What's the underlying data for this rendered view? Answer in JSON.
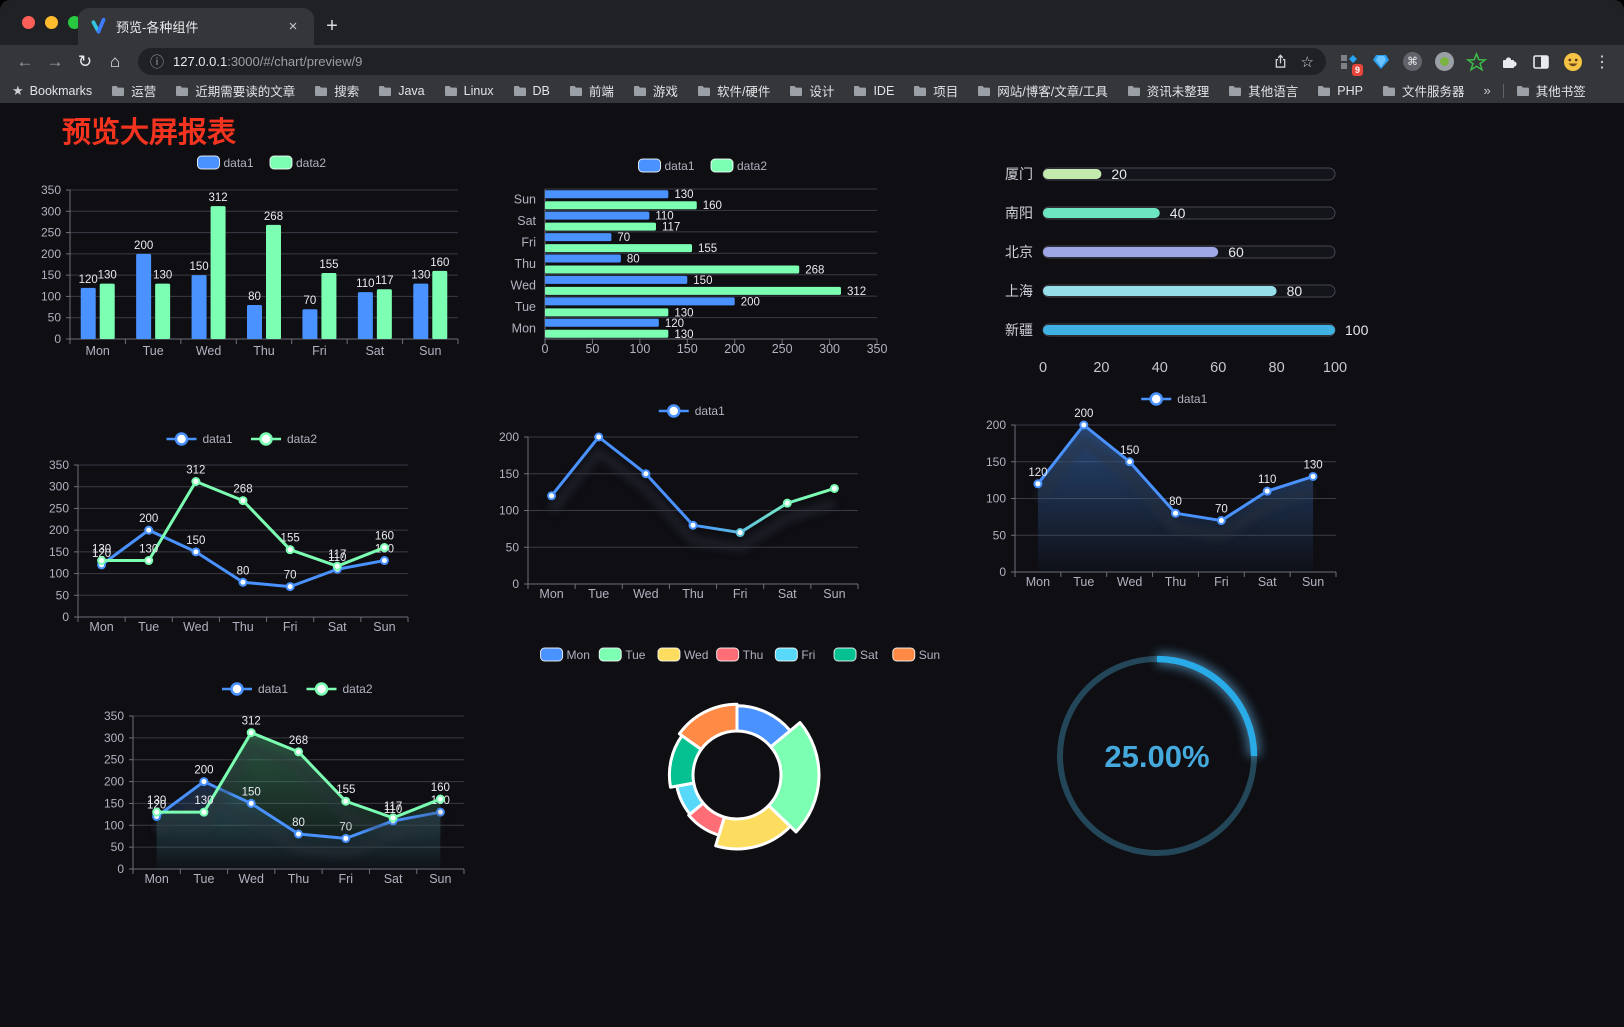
{
  "browser": {
    "tab_title": "预览-各种组件",
    "url_host": "127.0.0.1",
    "url_rest": ":3000/#/chart/preview/9",
    "extensions_badge": "9",
    "bookmarks_label": "Bookmarks",
    "bookmarks": [
      "运营",
      "近期需要读的文章",
      "搜索",
      "Java",
      "Linux",
      "DB",
      "前端",
      "游戏",
      "软件/硬件",
      "设计",
      "IDE",
      "项目",
      "网站/博客/文章/工具",
      "资讯未整理",
      "其他语言",
      "PHP",
      "文件服务器"
    ],
    "bookmarks_overflow": "»",
    "other_bookmarks": "其他书签",
    "icons": {
      "back": "←",
      "forward": "→",
      "reload": "↻",
      "home": "⌂",
      "info": "ⓘ",
      "star": "☆",
      "close": "×",
      "plus": "+",
      "menu": "⋮",
      "command": "⌘",
      "bookmarks_star": "★"
    }
  },
  "page": {
    "title": "预览大屏报表",
    "title_color": "#f4341f"
  },
  "theme": {
    "bg": "#0e0e13",
    "axis_label": "#b2b2c0",
    "grid": "#3a3b45",
    "axis_line": "#6e7079",
    "value_label": "#e9e9ee",
    "data1": "#4992ff",
    "data2": "#7cffb2"
  },
  "chart_data": [
    {
      "type": "bar",
      "legend": [
        "data1",
        "data2"
      ],
      "legend_position": "top",
      "categories": [
        "Mon",
        "Tue",
        "Wed",
        "Thu",
        "Fri",
        "Sat",
        "Sun"
      ],
      "series": [
        {
          "name": "data1",
          "color": "#4992ff",
          "values": [
            120,
            200,
            150,
            80,
            70,
            110,
            130
          ]
        },
        {
          "name": "data2",
          "color": "#7cffb2",
          "values": [
            130,
            130,
            312,
            268,
            155,
            117,
            160
          ]
        }
      ],
      "ylim": [
        0,
        350
      ],
      "ytick": 50,
      "grid": true
    },
    {
      "type": "bar",
      "orientation": "horizontal",
      "legend": [
        "data1",
        "data2"
      ],
      "legend_position": "top",
      "categories": [
        "Mon",
        "Tue",
        "Wed",
        "Thu",
        "Fri",
        "Sat",
        "Sun"
      ],
      "display_order_top_to_bottom": [
        "Sun",
        "Sat",
        "Fri",
        "Thu",
        "Wed",
        "Tue",
        "Mon"
      ],
      "series": [
        {
          "name": "data1",
          "color": "#4992ff",
          "values": [
            120,
            200,
            150,
            80,
            70,
            110,
            130
          ]
        },
        {
          "name": "data2",
          "color": "#7cffb2",
          "values": [
            130,
            130,
            312,
            268,
            155,
            117,
            160
          ]
        }
      ],
      "xlim": [
        0,
        350
      ],
      "xtick": 50,
      "grid": true
    },
    {
      "type": "bar",
      "subtype": "progress",
      "items": [
        {
          "label": "厦门",
          "value": 20,
          "color": "#c4ebad"
        },
        {
          "label": "南阳",
          "value": 40,
          "color": "#6be6c1"
        },
        {
          "label": "北京",
          "value": 60,
          "color": "#a0a7e6"
        },
        {
          "label": "上海",
          "value": 80,
          "color": "#96dee8"
        },
        {
          "label": "新疆",
          "value": 100,
          "color": "#3fb1e3"
        }
      ],
      "xlim": [
        0,
        100
      ],
      "xticks": [
        0,
        20,
        40,
        60,
        80,
        100
      ]
    },
    {
      "type": "line",
      "legend": [
        "data1",
        "data2"
      ],
      "legend_position": "top",
      "categories": [
        "Mon",
        "Tue",
        "Wed",
        "Thu",
        "Fri",
        "Sat",
        "Sun"
      ],
      "series": [
        {
          "name": "data1",
          "color": "#4992ff",
          "values": [
            120,
            200,
            150,
            80,
            70,
            110,
            130
          ]
        },
        {
          "name": "data2",
          "color": "#7cffb2",
          "values": [
            130,
            130,
            312,
            268,
            155,
            117,
            160
          ]
        }
      ],
      "ylim": [
        0,
        350
      ],
      "ytick": 50,
      "value_labels": true,
      "grid": true
    },
    {
      "type": "line",
      "subtype": "gradient",
      "legend": [
        "data1"
      ],
      "legend_position": "top",
      "categories": [
        "Mon",
        "Tue",
        "Wed",
        "Thu",
        "Fri",
        "Sat",
        "Sun"
      ],
      "series": [
        {
          "name": "data1",
          "gradient": [
            "#4992ff",
            "#7cffb2"
          ],
          "values": [
            120,
            200,
            150,
            80,
            70,
            110,
            130
          ]
        }
      ],
      "ylim": [
        0,
        200
      ],
      "ytick": 50,
      "value_labels": false,
      "grid": true
    },
    {
      "type": "area",
      "legend": [
        "data1"
      ],
      "legend_position": "top",
      "categories": [
        "Mon",
        "Tue",
        "Wed",
        "Thu",
        "Fri",
        "Sat",
        "Sun"
      ],
      "series": [
        {
          "name": "data1",
          "color": "#4992ff",
          "area": "rgba(62,120,200,0.55)",
          "values": [
            120,
            200,
            150,
            80,
            70,
            110,
            130
          ]
        }
      ],
      "ylim": [
        0,
        200
      ],
      "ytick": 50,
      "value_labels": true,
      "grid": true
    },
    {
      "type": "area",
      "legend": [
        "data1",
        "data2"
      ],
      "legend_position": "top",
      "categories": [
        "Mon",
        "Tue",
        "Wed",
        "Thu",
        "Fri",
        "Sat",
        "Sun"
      ],
      "series": [
        {
          "name": "data1",
          "color": "#4992ff",
          "area": "rgba(62,120,200,0.5)",
          "values": [
            120,
            200,
            150,
            80,
            70,
            110,
            130
          ]
        },
        {
          "name": "data2",
          "color": "#7cffb2",
          "area": "rgba(70,160,110,0.55)",
          "values": [
            130,
            130,
            312,
            268,
            155,
            117,
            160
          ]
        }
      ],
      "ylim": [
        0,
        350
      ],
      "ytick": 50,
      "value_labels": true,
      "grid": true
    },
    {
      "type": "pie",
      "subtype": "rose-donut",
      "legend_position": "top",
      "items": [
        {
          "name": "Mon",
          "value": 120,
          "color": "#4992ff"
        },
        {
          "name": "Tue",
          "value": 200,
          "color": "#7cffb2"
        },
        {
          "name": "Wed",
          "value": 150,
          "color": "#fddd60"
        },
        {
          "name": "Thu",
          "value": 80,
          "color": "#ff6e76"
        },
        {
          "name": "Fri",
          "value": 70,
          "color": "#58d9f9"
        },
        {
          "name": "Sat",
          "value": 110,
          "color": "#05c091"
        },
        {
          "name": "Sun",
          "value": 130,
          "color": "#ff8a45"
        }
      ]
    },
    {
      "type": "gauge",
      "value": 25,
      "label": "25.00%",
      "color": "#29abe8",
      "track_color": "#234658",
      "text_color": "#45a9dd"
    }
  ]
}
